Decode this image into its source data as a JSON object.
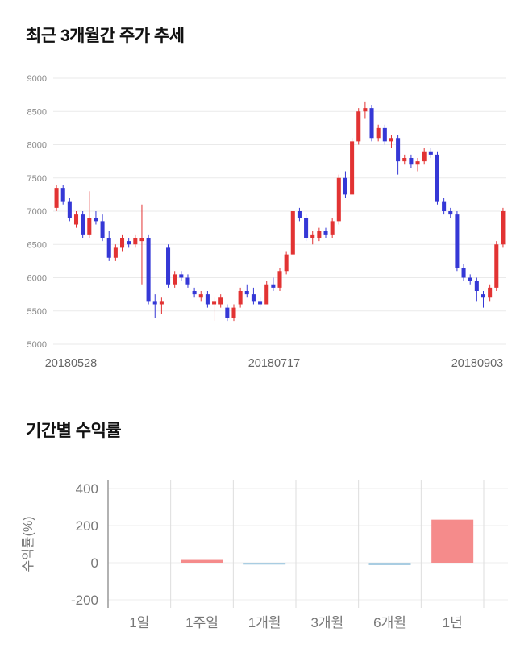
{
  "page": {
    "section1_title": "최근 3개월간 주가 추세",
    "section2_title": "기간별 수익률"
  },
  "chart_data": [
    {
      "type": "candlestick",
      "title": "최근 3개월간 주가 추세",
      "ylim": [
        5000,
        9000
      ],
      "yticks": [
        5000,
        5500,
        6000,
        6500,
        7000,
        7500,
        8000,
        8500,
        9000
      ],
      "xtick_labels": [
        "20180528",
        "20180717",
        "20180903"
      ],
      "up_color": "#e23333",
      "down_color": "#3538d6",
      "grid": true,
      "legend": "none",
      "candles_format": [
        "open",
        "high",
        "low",
        "close"
      ],
      "candles": [
        [
          7050,
          7400,
          7000,
          7350
        ],
        [
          7350,
          7400,
          7100,
          7150
        ],
        [
          7150,
          7200,
          6850,
          6900
        ],
        [
          6800,
          7000,
          6750,
          6950
        ],
        [
          6950,
          7000,
          6600,
          6650
        ],
        [
          6650,
          7300,
          6600,
          6900
        ],
        [
          6900,
          7000,
          6800,
          6850
        ],
        [
          6850,
          6950,
          6550,
          6600
        ],
        [
          6600,
          6700,
          6250,
          6300
        ],
        [
          6300,
          6500,
          6250,
          6450
        ],
        [
          6450,
          6650,
          6400,
          6600
        ],
        [
          6550,
          6600,
          6450,
          6500
        ],
        [
          6500,
          6650,
          6450,
          6600
        ],
        [
          6550,
          7100,
          5900,
          6600
        ],
        [
          6600,
          6650,
          5600,
          5650
        ],
        [
          5650,
          5750,
          5400,
          5600
        ],
        [
          5600,
          5700,
          5450,
          5650
        ],
        [
          6450,
          6500,
          5850,
          5900
        ],
        [
          5900,
          6100,
          5850,
          6050
        ],
        [
          6050,
          6100,
          5950,
          6000
        ],
        [
          6000,
          6050,
          5850,
          5900
        ],
        [
          5800,
          5850,
          5700,
          5750
        ],
        [
          5700,
          5800,
          5650,
          5750
        ],
        [
          5750,
          5800,
          5550,
          5600
        ],
        [
          5600,
          5700,
          5350,
          5650
        ],
        [
          5600,
          5750,
          5550,
          5700
        ],
        [
          5550,
          5600,
          5350,
          5400
        ],
        [
          5400,
          5600,
          5350,
          5550
        ],
        [
          5600,
          5850,
          5550,
          5800
        ],
        [
          5800,
          5900,
          5700,
          5750
        ],
        [
          5750,
          5850,
          5600,
          5650
        ],
        [
          5650,
          5700,
          5550,
          5600
        ],
        [
          5600,
          5950,
          5600,
          5900
        ],
        [
          5900,
          6000,
          5800,
          5850
        ],
        [
          5850,
          6150,
          5800,
          6100
        ],
        [
          6100,
          6400,
          6050,
          6350
        ],
        [
          6350,
          7000,
          6350,
          7000
        ],
        [
          7000,
          7050,
          6850,
          6900
        ],
        [
          6900,
          6950,
          6550,
          6600
        ],
        [
          6600,
          6700,
          6500,
          6650
        ],
        [
          6600,
          6750,
          6550,
          6700
        ],
        [
          6700,
          6750,
          6600,
          6650
        ],
        [
          6650,
          6900,
          6600,
          6850
        ],
        [
          6850,
          7550,
          6800,
          7500
        ],
        [
          7500,
          7600,
          7200,
          7250
        ],
        [
          7250,
          8100,
          7250,
          8050
        ],
        [
          8050,
          8550,
          8000,
          8500
        ],
        [
          8500,
          8650,
          8400,
          8550
        ],
        [
          8550,
          8600,
          8050,
          8100
        ],
        [
          8100,
          8300,
          8050,
          8250
        ],
        [
          8250,
          8300,
          8000,
          8050
        ],
        [
          8050,
          8150,
          7950,
          8100
        ],
        [
          8100,
          8150,
          7550,
          7750
        ],
        [
          7750,
          7850,
          7700,
          7800
        ],
        [
          7800,
          7850,
          7650,
          7700
        ],
        [
          7700,
          7800,
          7600,
          7750
        ],
        [
          7750,
          7950,
          7700,
          7900
        ],
        [
          7900,
          7950,
          7800,
          7850
        ],
        [
          7850,
          7900,
          7100,
          7150
        ],
        [
          7150,
          7200,
          6950,
          7000
        ],
        [
          7000,
          7050,
          6900,
          6950
        ],
        [
          6950,
          7000,
          6100,
          6150
        ],
        [
          6150,
          6200,
          5950,
          6000
        ],
        [
          6000,
          6050,
          5900,
          5950
        ],
        [
          5950,
          6000,
          5650,
          5800
        ],
        [
          5750,
          5800,
          5550,
          5700
        ],
        [
          5700,
          5900,
          5650,
          5850
        ],
        [
          5850,
          6550,
          5800,
          6500
        ],
        [
          6500,
          7050,
          6450,
          7000
        ]
      ]
    },
    {
      "type": "bar",
      "title": "기간별 수익률",
      "categories": [
        "1일",
        "1주일",
        "1개월",
        "3개월",
        "6개월",
        "1년"
      ],
      "values": [
        0,
        15,
        -10,
        0,
        -13,
        232
      ],
      "ylabel": "수익률(%)",
      "yticks": [
        -200,
        0,
        200,
        400
      ],
      "ylim": [
        -270,
        450
      ],
      "pos_color": "#f58b8b",
      "neg_color": "#a9cde2",
      "grid": true,
      "legend": "none"
    }
  ]
}
